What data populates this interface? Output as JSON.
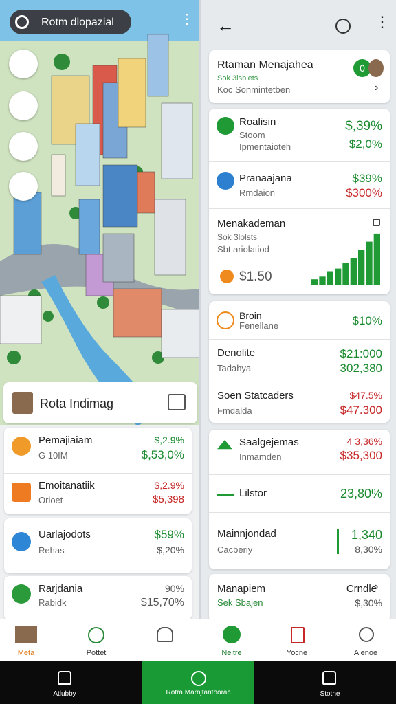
{
  "left": {
    "search": "Rotm dlopazial",
    "profile_card": "Rota Indimag",
    "items": [
      {
        "title": "Pemajiaiam",
        "sub": "G 10IM",
        "top": "$,2.9%",
        "main": "$,53,0%"
      },
      {
        "title": "Emoitanatiik",
        "sub": "Orioet",
        "top": "$,2.9%",
        "main": "$5,398"
      },
      {
        "title": "Uarlajodots",
        "sub": "Rehas",
        "top": "$59%",
        "main": "$,20%"
      },
      {
        "title": "Rarjdania",
        "sub": "Rabidk",
        "top": "90%",
        "main": "$15,70%"
      }
    ],
    "nav": [
      "Meta",
      "Pottet"
    ]
  },
  "right": {
    "header": {
      "title": "Rtaman Menajahea",
      "line1": "Sok 3lsblets",
      "line2": "Koc Sonmintetben",
      "badge": "0"
    },
    "rows1": [
      {
        "title": "Roalisin",
        "sub": "Stoom",
        "sub2": "Ipmentaioteh",
        "top": "$,39%",
        "main": "$2,0%"
      },
      {
        "title": "Pranaajana",
        "sub": "Rmdaion",
        "top": "$39%",
        "main": "$300%"
      }
    ],
    "chart_card": {
      "title": "Menakademan",
      "line1": "Sok 3lolsts",
      "line2": "Sbt ariolatiod",
      "value": "$1.50",
      "spark": {
        "values": [
          2,
          3,
          5,
          6,
          8,
          10,
          13,
          16,
          19
        ],
        "ylim": [
          0,
          20
        ]
      }
    },
    "rows2": [
      {
        "title": "Broin",
        "sub": "Fenellane",
        "top": "$10%"
      },
      {
        "title": "Denolite",
        "sub": "Tadahya",
        "top": "$21:000",
        "main": "302,380"
      },
      {
        "title": "Soen Statcaders",
        "sub": "Fmdalda",
        "top": "$47.5%",
        "main": "$47.300"
      }
    ],
    "rows3": [
      {
        "title": "Saalgejemas",
        "sub": "Inmamden",
        "top": "4 3,36%",
        "main": "$35,300"
      },
      {
        "title": "Lilstor",
        "top": "23,80%"
      },
      {
        "title": "Mainnjondad",
        "sub": "Cacberiy",
        "top": "1,340",
        "main": "8,30%"
      }
    ],
    "last": {
      "title": "Manapiem",
      "sub": "Sek Sbajen",
      "top": "Crndle",
      "main": "$,30%"
    },
    "nav": [
      "Neitre",
      "Yocne",
      "Alenoe"
    ]
  },
  "system_bar": [
    "Atlubby",
    "Rotra Marnjtantoorac",
    "Stotne"
  ]
}
